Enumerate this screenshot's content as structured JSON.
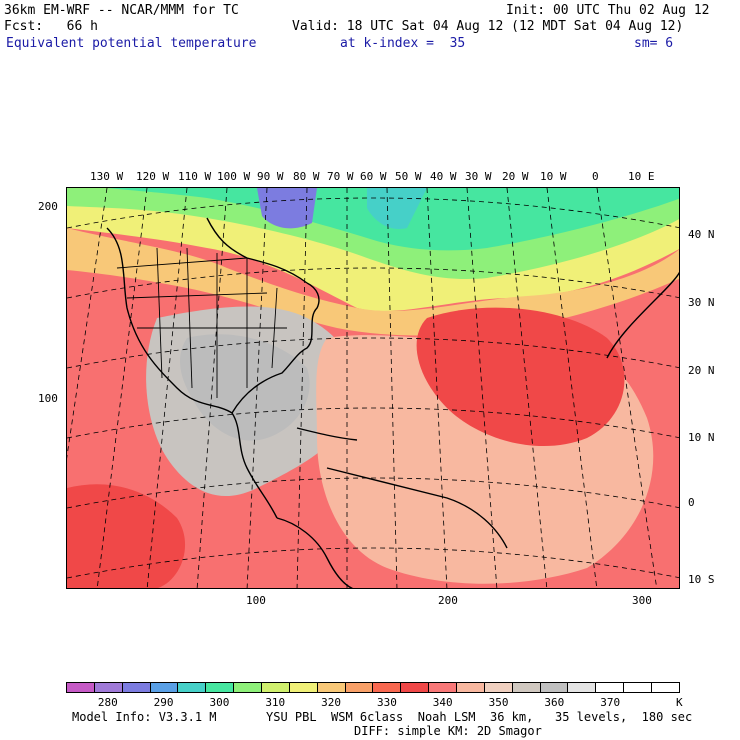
{
  "header": {
    "title": "36km EM-WRF -- NCAR/MMM for TC",
    "init": "Init: 00 UTC Thu 02 Aug 12",
    "fcst": "Fcst:   66 h",
    "valid": "Valid: 18 UTC Sat 04 Aug 12 (12 MDT Sat 04 Aug 12)",
    "field": "Equivalent potential temperature",
    "level": "at k-index =  35",
    "smooth": "sm= 6"
  },
  "map": {
    "top_lon_labels": [
      "130 W",
      "120 W",
      "110 W",
      "100 W",
      "90 W",
      "80 W",
      "70 W",
      "60 W",
      "50 W",
      "40 W",
      "30 W",
      "20 W",
      "10 W",
      "0",
      "10 E"
    ],
    "right_lat_labels": [
      "40 N",
      "30 N",
      "20 N",
      "10 N",
      "0",
      "10 S"
    ],
    "left_grid_labels": [
      "200",
      "100"
    ],
    "bottom_grid_labels": [
      "100",
      "200",
      "300"
    ],
    "colors": {
      "land_outline": "#000000",
      "grid_line": "#000000"
    }
  },
  "colorbar": {
    "colors": [
      "#c65ac6",
      "#a07ad8",
      "#7c7ce0",
      "#5aa0e6",
      "#46d0c8",
      "#46e6a0",
      "#8ef07a",
      "#d0f06e",
      "#f0f078",
      "#f8c878",
      "#f8a068",
      "#f86850",
      "#f04848",
      "#f87878",
      "#f8b8a0",
      "#f0d0c0",
      "#d0c8c0",
      "#c0c0c0",
      "#e4e4e4",
      "#ffffff",
      "#ffffff",
      "#ffffff"
    ],
    "labels": [
      "280",
      "290",
      "300",
      "310",
      "320",
      "330",
      "340",
      "350",
      "360",
      "370"
    ],
    "unit": "K"
  },
  "footer": {
    "model_info": "Model Info: V3.3.1 M",
    "physics_1": "YSU PBL  WSM 6class  Noah LSM  36 km,   35 levels,  180 sec",
    "physics_2": "DIFF: simple KM: 2D Smagor"
  }
}
